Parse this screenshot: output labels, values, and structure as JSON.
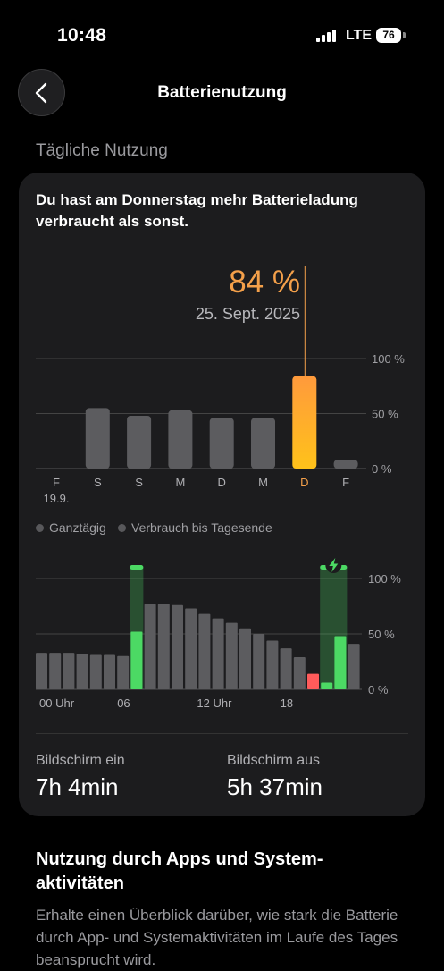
{
  "status": {
    "time": "10:48",
    "network": "LTE",
    "battery": "76"
  },
  "nav": {
    "title": "Batterienutzung"
  },
  "section_title": "Tägliche Nutzung",
  "card": {
    "headline": "Du hast am Donnerstag mehr Batterieladung verbraucht als sonst.",
    "selected_value": "84 %",
    "selected_date": "25. Sept. 2025",
    "legend": {
      "all_day": "Ganztägig",
      "until_end": "Verbrauch bis Tagesende"
    },
    "screen_on_label": "Bildschirm ein",
    "screen_on_value": "7h 4min",
    "screen_off_label": "Bildschirm aus",
    "screen_off_value": "5h 37min"
  },
  "apps": {
    "title": "Nutzung durch Apps und System-aktivitäten",
    "description": "Erhalte einen Überblick darüber, wie stark die Batterie durch App- und Systemaktivitäten im Laufe des Tages beansprucht wird."
  },
  "colors": {
    "accent": "#f4a04a",
    "charging": "#4cd964",
    "low": "#ff5b5b",
    "bar": "#5c5c5f"
  },
  "chart_data": [
    {
      "type": "bar",
      "categories": [
        "F",
        "S",
        "S",
        "M",
        "D",
        "M",
        "D",
        "F"
      ],
      "sub_labels": [
        "19.9.",
        "",
        "",
        "",
        "",
        "",
        "",
        ""
      ],
      "values": [
        0,
        55,
        48,
        53,
        46,
        46,
        84,
        8
      ],
      "selected_index": 6,
      "ytick_labels": [
        "100 %",
        "50 %",
        "0 %"
      ],
      "ylim": [
        0,
        100
      ]
    },
    {
      "type": "bar",
      "xtick_labels": [
        "00 Uhr",
        "06",
        "12 Uhr",
        "18"
      ],
      "ytick_labels": [
        "100 %",
        "50 %",
        "0 %"
      ],
      "ylim": [
        0,
        100
      ],
      "values": [
        33,
        33,
        33,
        32,
        31,
        31,
        30,
        52,
        77,
        77,
        76,
        73,
        68,
        64,
        60,
        55,
        50,
        44,
        37,
        29,
        14,
        6,
        48,
        41
      ],
      "status": [
        "n",
        "n",
        "n",
        "n",
        "n",
        "n",
        "n",
        "c",
        "n",
        "n",
        "n",
        "n",
        "n",
        "n",
        "n",
        "n",
        "n",
        "n",
        "n",
        "n",
        "l",
        "c",
        "c",
        "n"
      ],
      "charging_spans": [
        [
          7,
          7
        ],
        [
          21,
          22
        ]
      ]
    }
  ]
}
